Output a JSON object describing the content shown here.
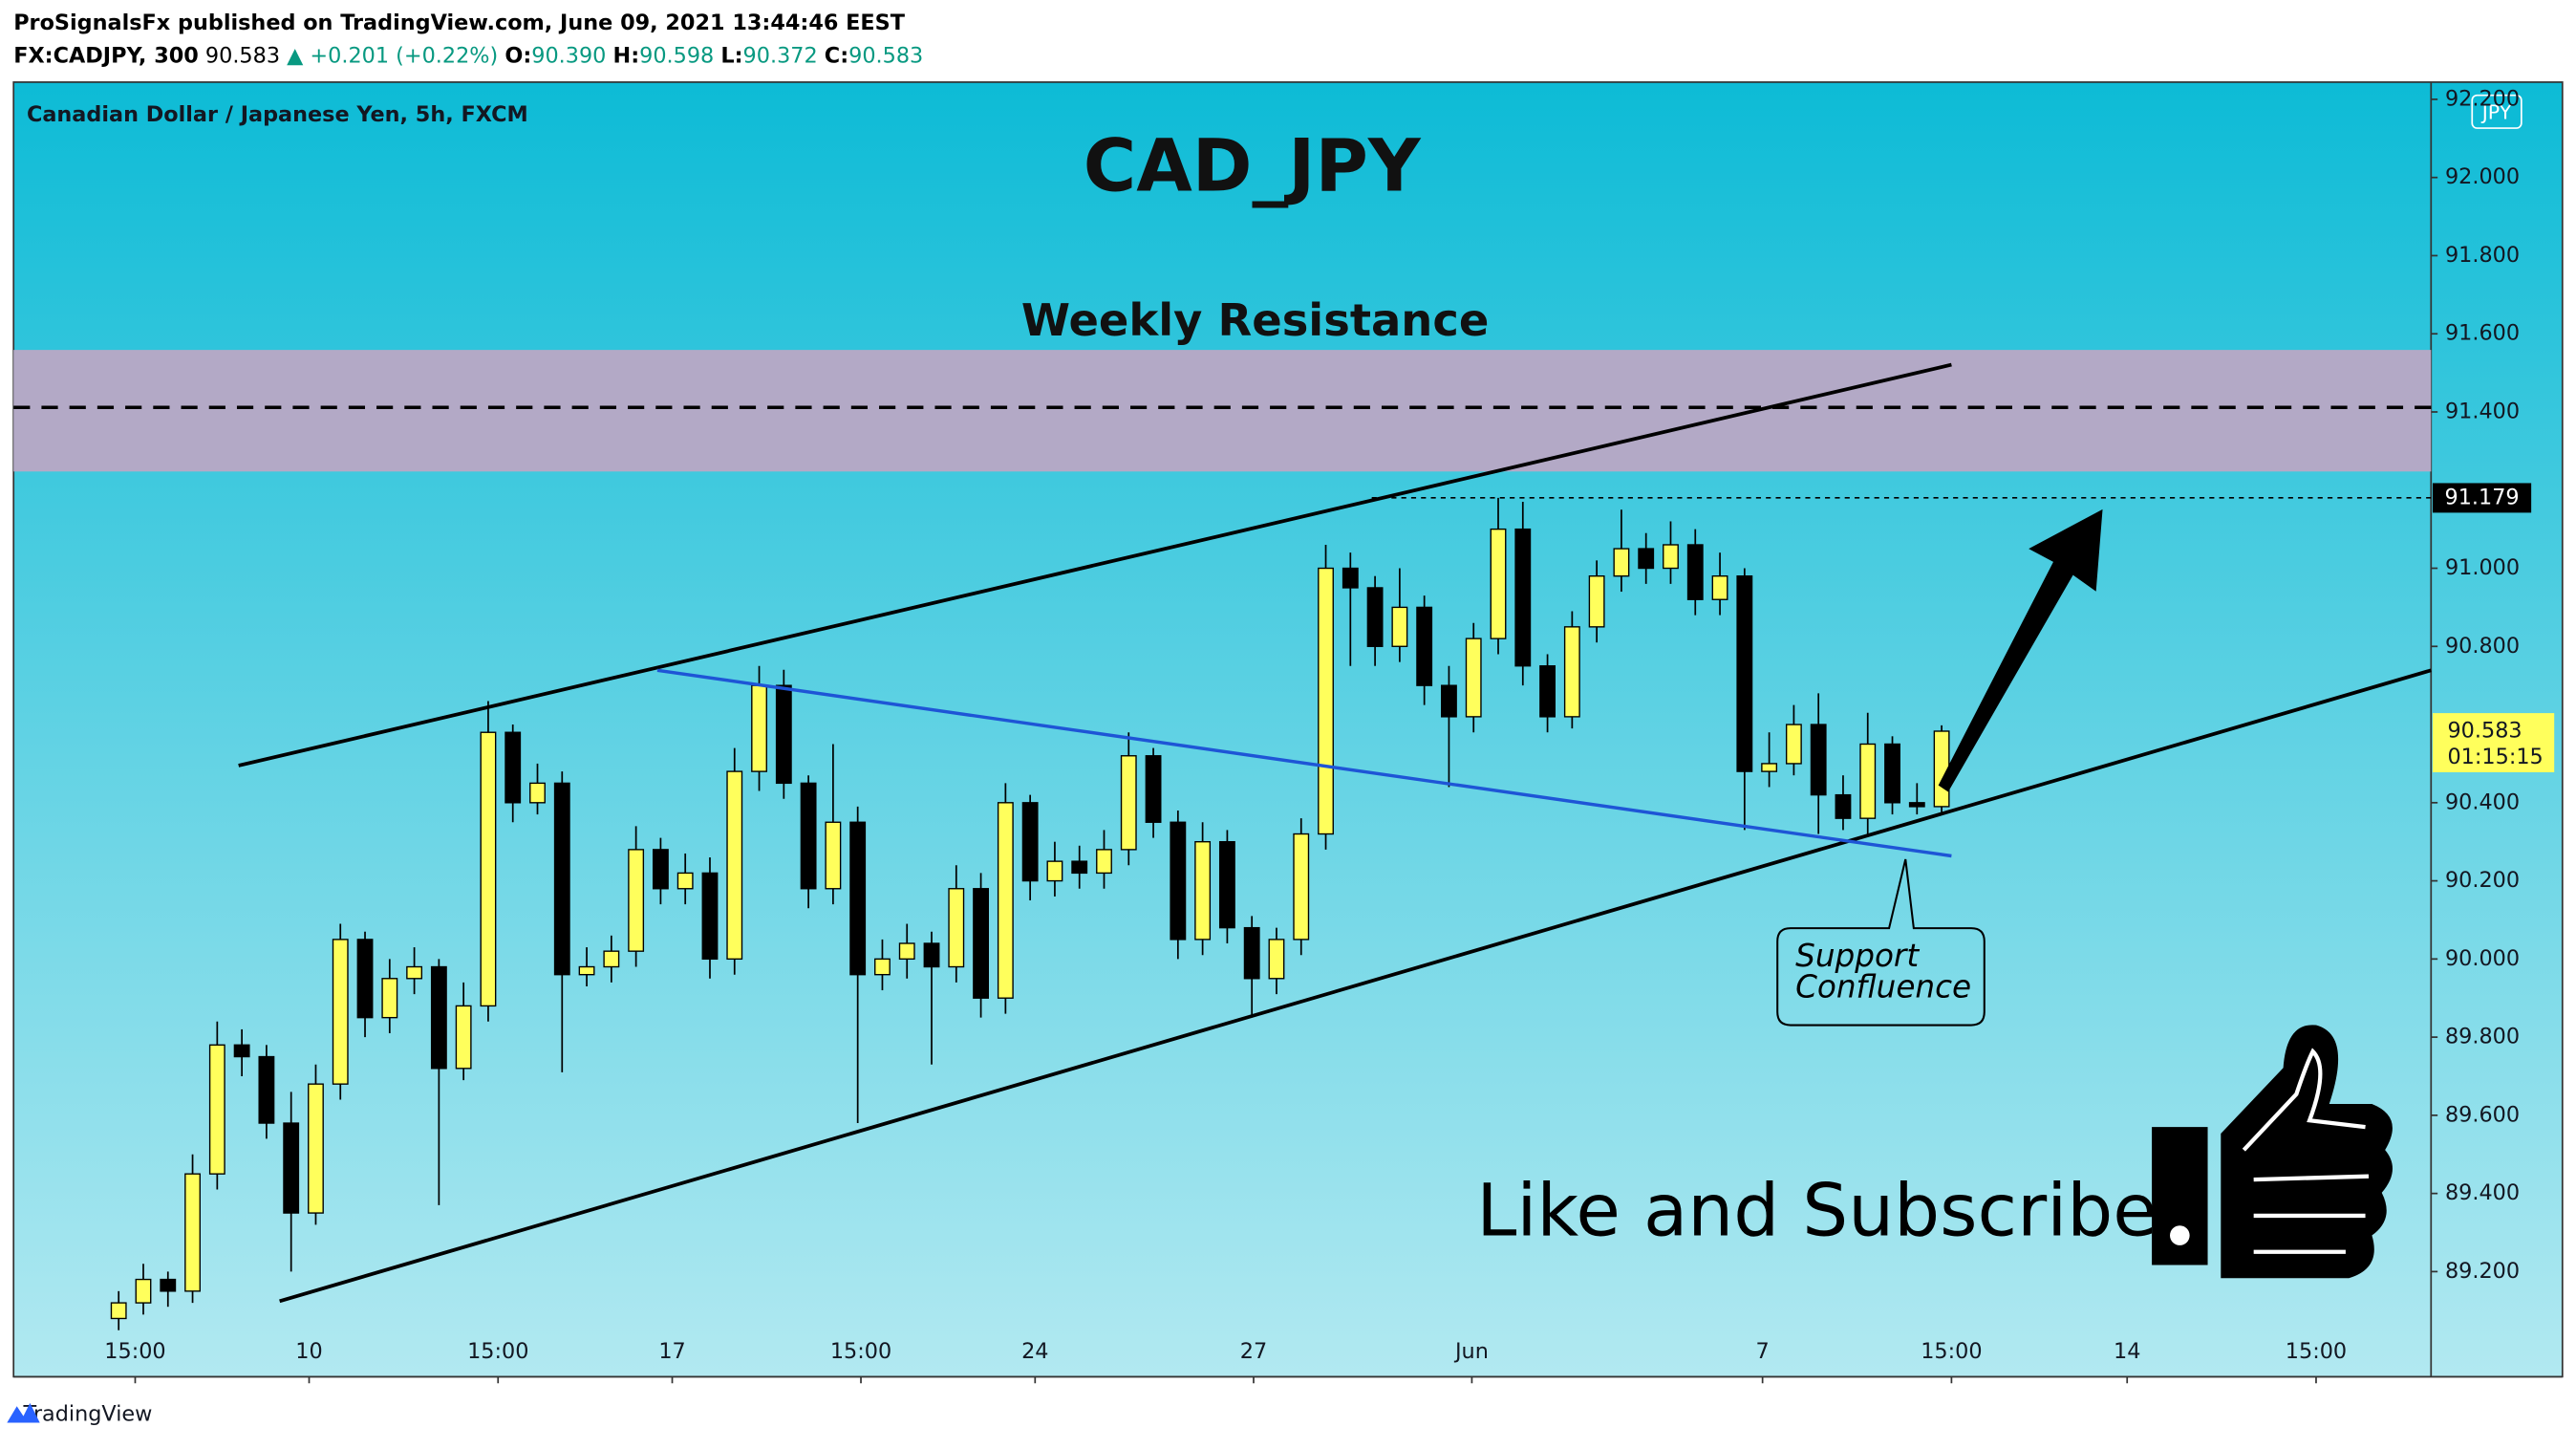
{
  "header": {
    "published": "ProSignalsFx published on TradingView.com, June 09, 2021 13:44:46 EEST",
    "symbol": "FX:CADJPY, 300",
    "price": "90.583",
    "change": "▲ +0.201 (+0.22%)",
    "ohlc": [
      {
        "key": "O:",
        "value": "90.390"
      },
      {
        "key": "H:",
        "value": "90.598"
      },
      {
        "key": "L:",
        "value": "90.372"
      },
      {
        "key": "C:",
        "value": "90.583"
      }
    ]
  },
  "footer": {
    "brand": "TradingView"
  },
  "chart_data": {
    "type": "candlestick",
    "title": "CAD_JPY",
    "legend": "Canadian Dollar / Japanese Yen, 5h, FXCM",
    "currency": "JPY",
    "annotations": {
      "resistance": "Weekly Resistance",
      "support": [
        "Support",
        "Confluence"
      ],
      "call": "Like and Subscribe"
    },
    "marker_label": "91.179",
    "last_price_label": "90.583",
    "countdown": "01:15:15",
    "up_color": "#ffff5c",
    "down_color": "#000000",
    "open": [
      89.08,
      89.12,
      89.18,
      89.15,
      89.45,
      89.78,
      89.75,
      89.58,
      89.35,
      89.68,
      90.05,
      89.85,
      89.95,
      89.98,
      89.72,
      89.88,
      90.58,
      90.4,
      90.45,
      89.96,
      89.98,
      90.02,
      90.28,
      90.18,
      90.22,
      90.0,
      90.48,
      90.7,
      90.45,
      90.18,
      90.35,
      89.96,
      90.0,
      90.04,
      89.98,
      90.18,
      89.9,
      90.4,
      90.2,
      90.25,
      90.22,
      90.28,
      90.52,
      90.35,
      90.05,
      90.3,
      90.08,
      89.95,
      90.05,
      90.32,
      91.0,
      90.95,
      90.8,
      90.9,
      90.7,
      90.62,
      90.82,
      91.1,
      90.75,
      90.62,
      90.85,
      90.98,
      91.05,
      91.0,
      91.06,
      90.92,
      90.98,
      90.48,
      90.5,
      90.6,
      90.42,
      90.36,
      90.55,
      90.4,
      90.39
    ],
    "high": [
      89.15,
      89.22,
      89.2,
      89.5,
      89.84,
      89.82,
      89.78,
      89.66,
      89.73,
      90.09,
      90.07,
      90.0,
      90.03,
      90.0,
      89.94,
      90.66,
      90.6,
      90.5,
      90.48,
      90.03,
      90.06,
      90.34,
      90.31,
      90.27,
      90.26,
      90.54,
      90.75,
      90.74,
      90.47,
      90.55,
      90.39,
      90.05,
      90.09,
      90.07,
      90.24,
      90.22,
      90.45,
      90.42,
      90.3,
      90.29,
      90.33,
      90.58,
      90.54,
      90.38,
      90.35,
      90.33,
      90.11,
      90.08,
      90.36,
      91.06,
      91.04,
      90.98,
      91.0,
      90.93,
      90.75,
      90.86,
      91.18,
      91.17,
      90.78,
      90.89,
      91.02,
      91.15,
      91.09,
      91.12,
      91.1,
      91.04,
      91.0,
      90.58,
      90.65,
      90.68,
      90.47,
      90.63,
      90.57,
      90.45,
      90.598
    ],
    "low": [
      89.05,
      89.09,
      89.11,
      89.12,
      89.41,
      89.7,
      89.54,
      89.2,
      89.32,
      89.64,
      89.8,
      89.81,
      89.91,
      89.37,
      89.69,
      89.84,
      90.35,
      90.37,
      89.71,
      89.93,
      89.94,
      89.98,
      90.14,
      90.14,
      89.95,
      89.96,
      90.43,
      90.41,
      90.13,
      90.14,
      89.58,
      89.92,
      89.95,
      89.73,
      89.94,
      89.85,
      89.86,
      90.15,
      90.16,
      90.18,
      90.18,
      90.24,
      90.31,
      90.0,
      90.01,
      90.04,
      89.85,
      89.91,
      90.01,
      90.28,
      90.75,
      90.75,
      90.76,
      90.65,
      90.44,
      90.58,
      90.78,
      90.7,
      90.58,
      90.59,
      90.81,
      90.94,
      90.96,
      90.96,
      90.88,
      90.88,
      90.33,
      90.44,
      90.47,
      90.32,
      90.33,
      90.32,
      90.37,
      90.37,
      90.372
    ],
    "close": [
      89.12,
      89.18,
      89.15,
      89.45,
      89.78,
      89.75,
      89.58,
      89.35,
      89.68,
      90.05,
      89.85,
      89.95,
      89.98,
      89.72,
      89.88,
      90.58,
      90.4,
      90.45,
      89.96,
      89.98,
      90.02,
      90.28,
      90.18,
      90.22,
      90.0,
      90.48,
      90.7,
      90.45,
      90.18,
      90.35,
      89.96,
      90.0,
      90.04,
      89.98,
      90.18,
      89.9,
      90.4,
      90.2,
      90.25,
      90.22,
      90.28,
      90.52,
      90.35,
      90.05,
      90.3,
      90.08,
      89.95,
      90.05,
      90.32,
      91.0,
      90.95,
      90.8,
      90.9,
      90.7,
      90.62,
      90.82,
      91.1,
      90.75,
      90.62,
      90.85,
      90.98,
      91.05,
      91.0,
      91.06,
      90.92,
      90.98,
      90.48,
      90.5,
      90.6,
      90.42,
      90.36,
      90.55,
      90.4,
      90.39,
      90.583
    ],
    "xlim": [
      -4.267,
      93.867
    ],
    "xticks": [
      {
        "value": 0.67,
        "label": "15:00"
      },
      {
        "value": 7.73,
        "label": "10"
      },
      {
        "value": 15.4,
        "label": "15:00"
      },
      {
        "value": 22.47,
        "label": "17"
      },
      {
        "value": 30.13,
        "label": "15:00"
      },
      {
        "value": 37.2,
        "label": "24"
      },
      {
        "value": 46.07,
        "label": "27"
      },
      {
        "value": 54.93,
        "label": "Jun"
      },
      {
        "value": 66.73,
        "label": "7"
      },
      {
        "value": 74.4,
        "label": "15:00"
      },
      {
        "value": 81.53,
        "label": "14"
      },
      {
        "value": 89.2,
        "label": "15:00"
      }
    ],
    "ylim": [
      88.931,
      92.244
    ],
    "yticks": [
      {
        "value": 89.2,
        "label": "89.200"
      },
      {
        "value": 89.4,
        "label": "89.400"
      },
      {
        "value": 89.6,
        "label": "89.600"
      },
      {
        "value": 89.8,
        "label": "89.800"
      },
      {
        "value": 90.0,
        "label": "90.000"
      },
      {
        "value": 90.2,
        "label": "90.200"
      },
      {
        "value": 90.4,
        "label": "90.400"
      },
      {
        "value": 90.8,
        "label": "90.800"
      },
      {
        "value": 91.0,
        "label": "91.000"
      },
      {
        "value": 91.4,
        "label": "91.400"
      },
      {
        "value": 91.6,
        "label": "91.600"
      },
      {
        "value": 91.8,
        "label": "91.800"
      },
      {
        "value": 92.0,
        "label": "92.000"
      },
      {
        "value": 92.2,
        "label": "92.200"
      }
    ]
  }
}
